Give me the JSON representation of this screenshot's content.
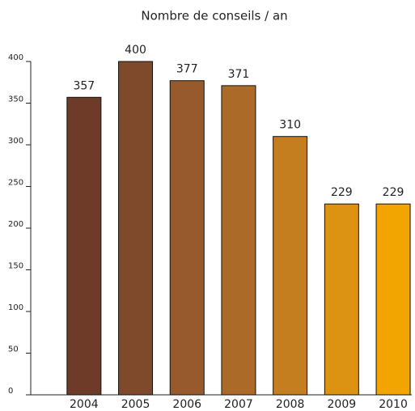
{
  "chart_data": {
    "type": "bar",
    "title": "Nombre de conseils / an",
    "categories": [
      "2004",
      "2005",
      "2006",
      "2007",
      "2008",
      "2009",
      "2010"
    ],
    "values": [
      357,
      400,
      377,
      371,
      310,
      229,
      229
    ],
    "colors": [
      "#6e3b28",
      "#7f4a2b",
      "#975a2c",
      "#ab6a27",
      "#c47e1f",
      "#dc9212",
      "#f2a500"
    ],
    "ylim": [
      0,
      400
    ],
    "yticks": [
      0,
      50,
      100,
      150,
      200,
      250,
      300,
      350,
      400
    ]
  }
}
